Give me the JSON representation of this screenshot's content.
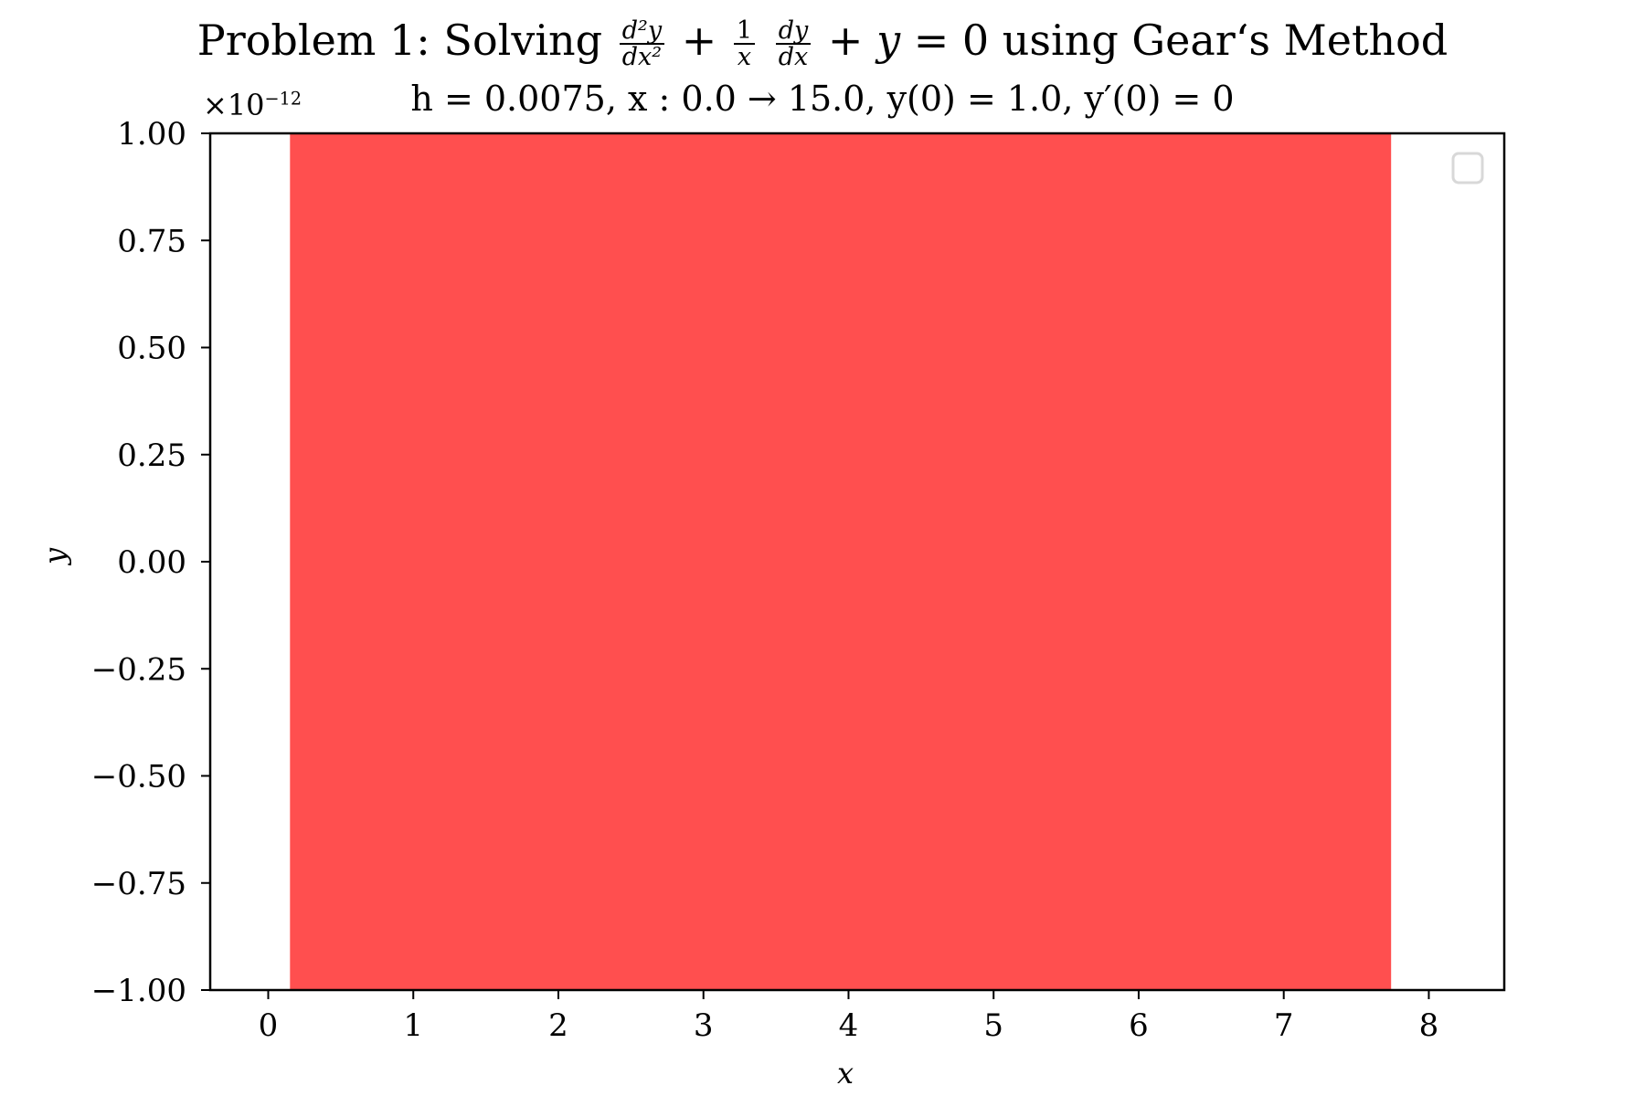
{
  "chart_data": {
    "type": "area",
    "title": {
      "prefix": "Problem 1: Solving",
      "frac1_num": "d²y",
      "frac1_den": "dx²",
      "frac2_num": "1",
      "frac2_den": "x",
      "frac3_num": "dy",
      "frac3_den": "dx",
      "suffix": "using Gear‘s Method"
    },
    "subtitle": "h = 0.0075, x : 0.0 → 15.0, y(0) = 1.0, y′(0) = 0",
    "xlabel": "x",
    "ylabel": "y",
    "y_multiplier_label": "×10",
    "y_multiplier_exponent": "−12",
    "xlim": [
      -0.4,
      8.52
    ],
    "ylim": [
      -1.0,
      1.0
    ],
    "x_ticks": [
      0,
      1,
      2,
      3,
      4,
      5,
      6,
      7,
      8
    ],
    "x_tick_labels": [
      "0",
      "1",
      "2",
      "3",
      "4",
      "5",
      "6",
      "7",
      "8"
    ],
    "y_ticks": [
      1.0,
      0.75,
      0.5,
      0.25,
      0.0,
      -0.25,
      -0.5,
      -0.75,
      -1.0
    ],
    "y_tick_labels": [
      "1.00",
      "0.75",
      "0.50",
      "0.25",
      "0.00",
      "−0.25",
      "−0.50",
      "−0.75",
      "−1.00"
    ],
    "filled_region": {
      "x": [
        0.15,
        7.74
      ],
      "y": [
        -1.0,
        1.0
      ],
      "color": "#ff4f4f"
    },
    "legend": {
      "position": "top-right",
      "entries": []
    },
    "grid": false
  }
}
